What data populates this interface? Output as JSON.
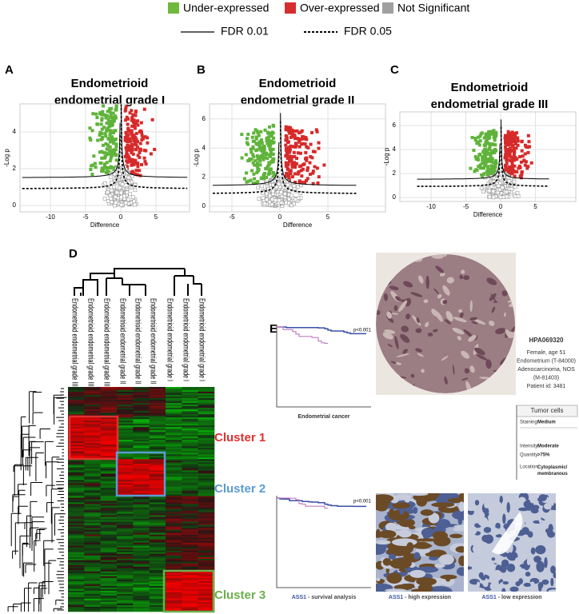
{
  "legend": {
    "under": "Under-expressed",
    "over": "Over-expressed",
    "ns": "Not Significant",
    "fdr1": "FDR 0.01",
    "fdr5": "FDR 0.05"
  },
  "volcano": [
    {
      "label": "A",
      "title": [
        "Endometrioid",
        "endometrial grade I"
      ],
      "y_label": "-Log p",
      "x_label": "Difference",
      "xticks": [
        -10,
        -5,
        0,
        5
      ],
      "yticks": [
        0,
        2,
        4
      ]
    },
    {
      "label": "B",
      "title": [
        "Endometrioid",
        "endometrial grade II"
      ],
      "y_label": "-Log p",
      "x_label": "Difference",
      "xticks": [
        -5,
        0,
        5
      ],
      "yticks": [
        0,
        2,
        4,
        6
      ]
    },
    {
      "label": "C",
      "title": [
        "Endometrioid",
        "endometrial grade III"
      ],
      "y_label": "-Log p",
      "x_label": "Difference",
      "xticks": [
        -10,
        -5,
        0,
        5
      ],
      "yticks": [
        0,
        2,
        4,
        6
      ]
    }
  ],
  "heatmap": {
    "label": "D",
    "columns": [
      "Endometrioid endometrial grade III",
      "Endometrioid endometrial grade III",
      "Endometrioid endometrial grade III",
      "Endometrioid endometrial grade II",
      "Endometrioid endometrial grade II",
      "Endometrioid endometrial grade II",
      "Endometrioid endometrial grade I",
      "Endometrioid endometrial grade I",
      "Endometrioid endometrial grade I"
    ],
    "clusters": [
      "Cluster 1",
      "Cluster 2",
      "Cluster 3"
    ]
  },
  "ihc": {
    "label": "E",
    "id": "HPA069320",
    "patient": [
      "Female, age 51",
      "Endometrium (T-84000)",
      "Adenocarcinoma, NOS",
      "(M-81403)",
      "Patient id: 3481"
    ],
    "box_title": "Tumor cells",
    "fields": [
      [
        "Staining:",
        "Medium"
      ],
      [
        "Intensity:",
        "Moderate"
      ],
      [
        "Quantity:",
        ">75%"
      ],
      [
        "Location:",
        "Cytoplasmic/ membranous"
      ]
    ],
    "p_values": [
      "p<0.001",
      "p<0.001"
    ],
    "km_caption": "Endometrial cancer",
    "gene": "ASS1",
    "captions": [
      " - survival analysis",
      " - high expression",
      " - low expression"
    ]
  }
}
